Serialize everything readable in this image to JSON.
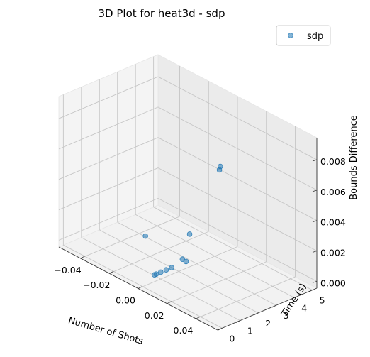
{
  "chart_data": {
    "type": "scatter",
    "projection": "3d",
    "title": "3D Plot for heat3d - sdp",
    "xlabel": "Number of Shots",
    "ylabel": "Time (s)",
    "zlabel": "Bounds Difference",
    "xlim": [
      -0.055,
      0.055
    ],
    "ylim": [
      -0.25,
      5.25
    ],
    "zlim": [
      -0.00045,
      0.00945
    ],
    "xticks": [
      "−0.04",
      "−0.02",
      "0.00",
      "0.02",
      "0.04"
    ],
    "xtick_values": [
      -0.04,
      -0.02,
      0.0,
      0.02,
      0.04
    ],
    "yticks": [
      "0",
      "1",
      "2",
      "3",
      "4",
      "5"
    ],
    "ytick_values": [
      0,
      1,
      2,
      3,
      4,
      5
    ],
    "zticks": [
      "0.000",
      "0.002",
      "0.004",
      "0.006",
      "0.008"
    ],
    "ztick_values": [
      0.0,
      0.002,
      0.004,
      0.006,
      0.008
    ],
    "grid": true,
    "legend": {
      "position": "top-right",
      "entries": [
        "sdp"
      ]
    },
    "series": [
      {
        "name": "sdp",
        "color": "#1f77b4",
        "points": [
          {
            "x": 0.0,
            "y": 4.3,
            "z": 0.0053
          },
          {
            "x": 0.0,
            "y": 4.25,
            "z": 0.0051
          },
          {
            "x": 0.0,
            "y": 2.6,
            "z": 0.0017
          },
          {
            "x": 0.0,
            "y": 0.15,
            "z": 0.0028
          },
          {
            "x": 0.0,
            "y": 2.4,
            "z": 0.0
          },
          {
            "x": 0.0,
            "y": 2.2,
            "z": 0.00025
          },
          {
            "x": 0.0,
            "y": 1.6,
            "z": 0.0
          },
          {
            "x": 0.0,
            "y": 1.3,
            "z": 0.0
          },
          {
            "x": 0.0,
            "y": 1.0,
            "z": 0.0
          },
          {
            "x": 0.0,
            "y": 0.75,
            "z": 0.0
          },
          {
            "x": 0.0,
            "y": 0.65,
            "z": 0.0
          }
        ]
      }
    ]
  }
}
